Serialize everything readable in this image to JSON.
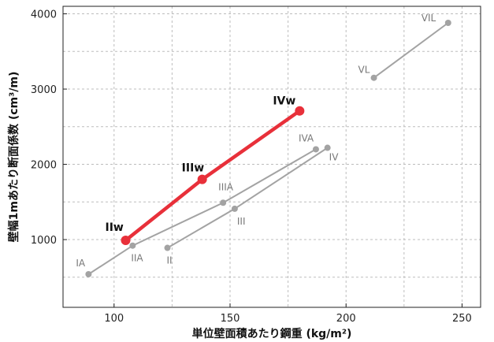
{
  "chart_data": {
    "type": "line",
    "xlabel": "単位壁面積あたり鋼重 (kg/m²)",
    "ylabel": "壁幅1mあたり断面係数 (cm³/m)",
    "xlim": [
      78,
      258
    ],
    "ylim": [
      100,
      4100
    ],
    "xticks": [
      100,
      150,
      200,
      250
    ],
    "yticks": [
      1000,
      2000,
      3000,
      4000
    ],
    "grid": true,
    "colors": {
      "standard": "#a3a3a3",
      "wide": "#e8303a"
    },
    "series": [
      {
        "style": "standard",
        "points": [
          {
            "x": 89,
            "y": 540,
            "label": "IA"
          },
          {
            "x": 108,
            "y": 920,
            "label": "IIA"
          },
          {
            "x": 147,
            "y": 1490,
            "label": "IIIA"
          },
          {
            "x": 187,
            "y": 2200,
            "label": "IVA"
          }
        ]
      },
      {
        "style": "standard",
        "points": [
          {
            "x": 123,
            "y": 890,
            "label": "II"
          },
          {
            "x": 152,
            "y": 1410,
            "label": "III"
          },
          {
            "x": 192,
            "y": 2220,
            "label": "IV"
          }
        ]
      },
      {
        "style": "standard",
        "points": [
          {
            "x": 212,
            "y": 3150,
            "label": "VL"
          },
          {
            "x": 244,
            "y": 3880,
            "label": "VIL"
          }
        ]
      },
      {
        "style": "wide",
        "points": [
          {
            "x": 105,
            "y": 990,
            "label": "IIw"
          },
          {
            "x": 138,
            "y": 1800,
            "label": "IIIw"
          },
          {
            "x": 180,
            "y": 2710,
            "label": "IVw"
          }
        ]
      }
    ]
  }
}
